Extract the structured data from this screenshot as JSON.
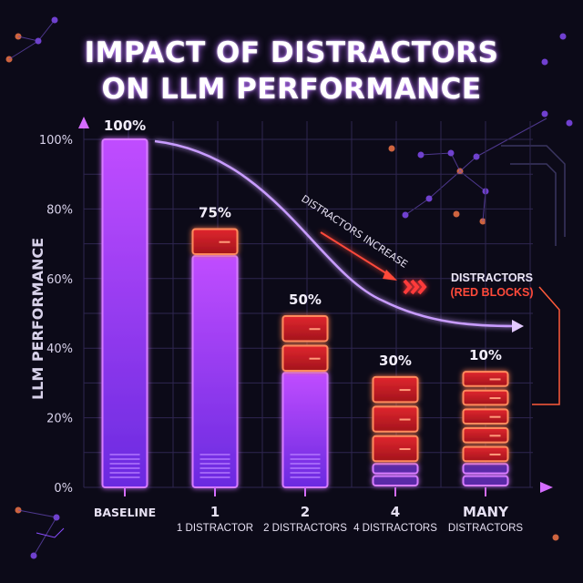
{
  "chart_data": {
    "type": "bar",
    "title": "IMPACT OF DISTRACTORS ON LLM PERFORMANCE",
    "title_lines": [
      "IMPACT OF DISTRACTORS",
      "ON LLM PERFORMANCE"
    ],
    "ylabel": "LLM PERFORMANCE",
    "xlabel": "",
    "ylim": [
      0,
      100
    ],
    "yticks": [
      "0%",
      "20%",
      "40%",
      "60%",
      "80%",
      "100%"
    ],
    "ytick_values": [
      0,
      20,
      40,
      60,
      80,
      100
    ],
    "grid": true,
    "categories": [
      "BASELINE",
      "1",
      "2",
      "4",
      "MANY"
    ],
    "category_sublabels": [
      "",
      "1 DISTRACTOR",
      "2 DISTRACTORS",
      "4 DISTRACTORS",
      "DISTRACTORS"
    ],
    "values": [
      100,
      75,
      50,
      30,
      10
    ],
    "value_labels": [
      "100%",
      "75%",
      "50%",
      "30%",
      "10%"
    ],
    "distractor_blocks": [
      0,
      1,
      2,
      3,
      5
    ],
    "annotations": {
      "trend": "DISTRACTORS INCREASE",
      "legend_line1": "DISTRACTORS",
      "legend_line2": "(RED BLOCKS)"
    },
    "colors": {
      "background": "#0c0a18",
      "bar": "#9b3dff",
      "bar_glow": "#d77bff",
      "distractor": "#ff3b3b",
      "distractor_edge": "#ff8a5c",
      "grid": "#2e2650",
      "axis": "#d46cff"
    }
  }
}
